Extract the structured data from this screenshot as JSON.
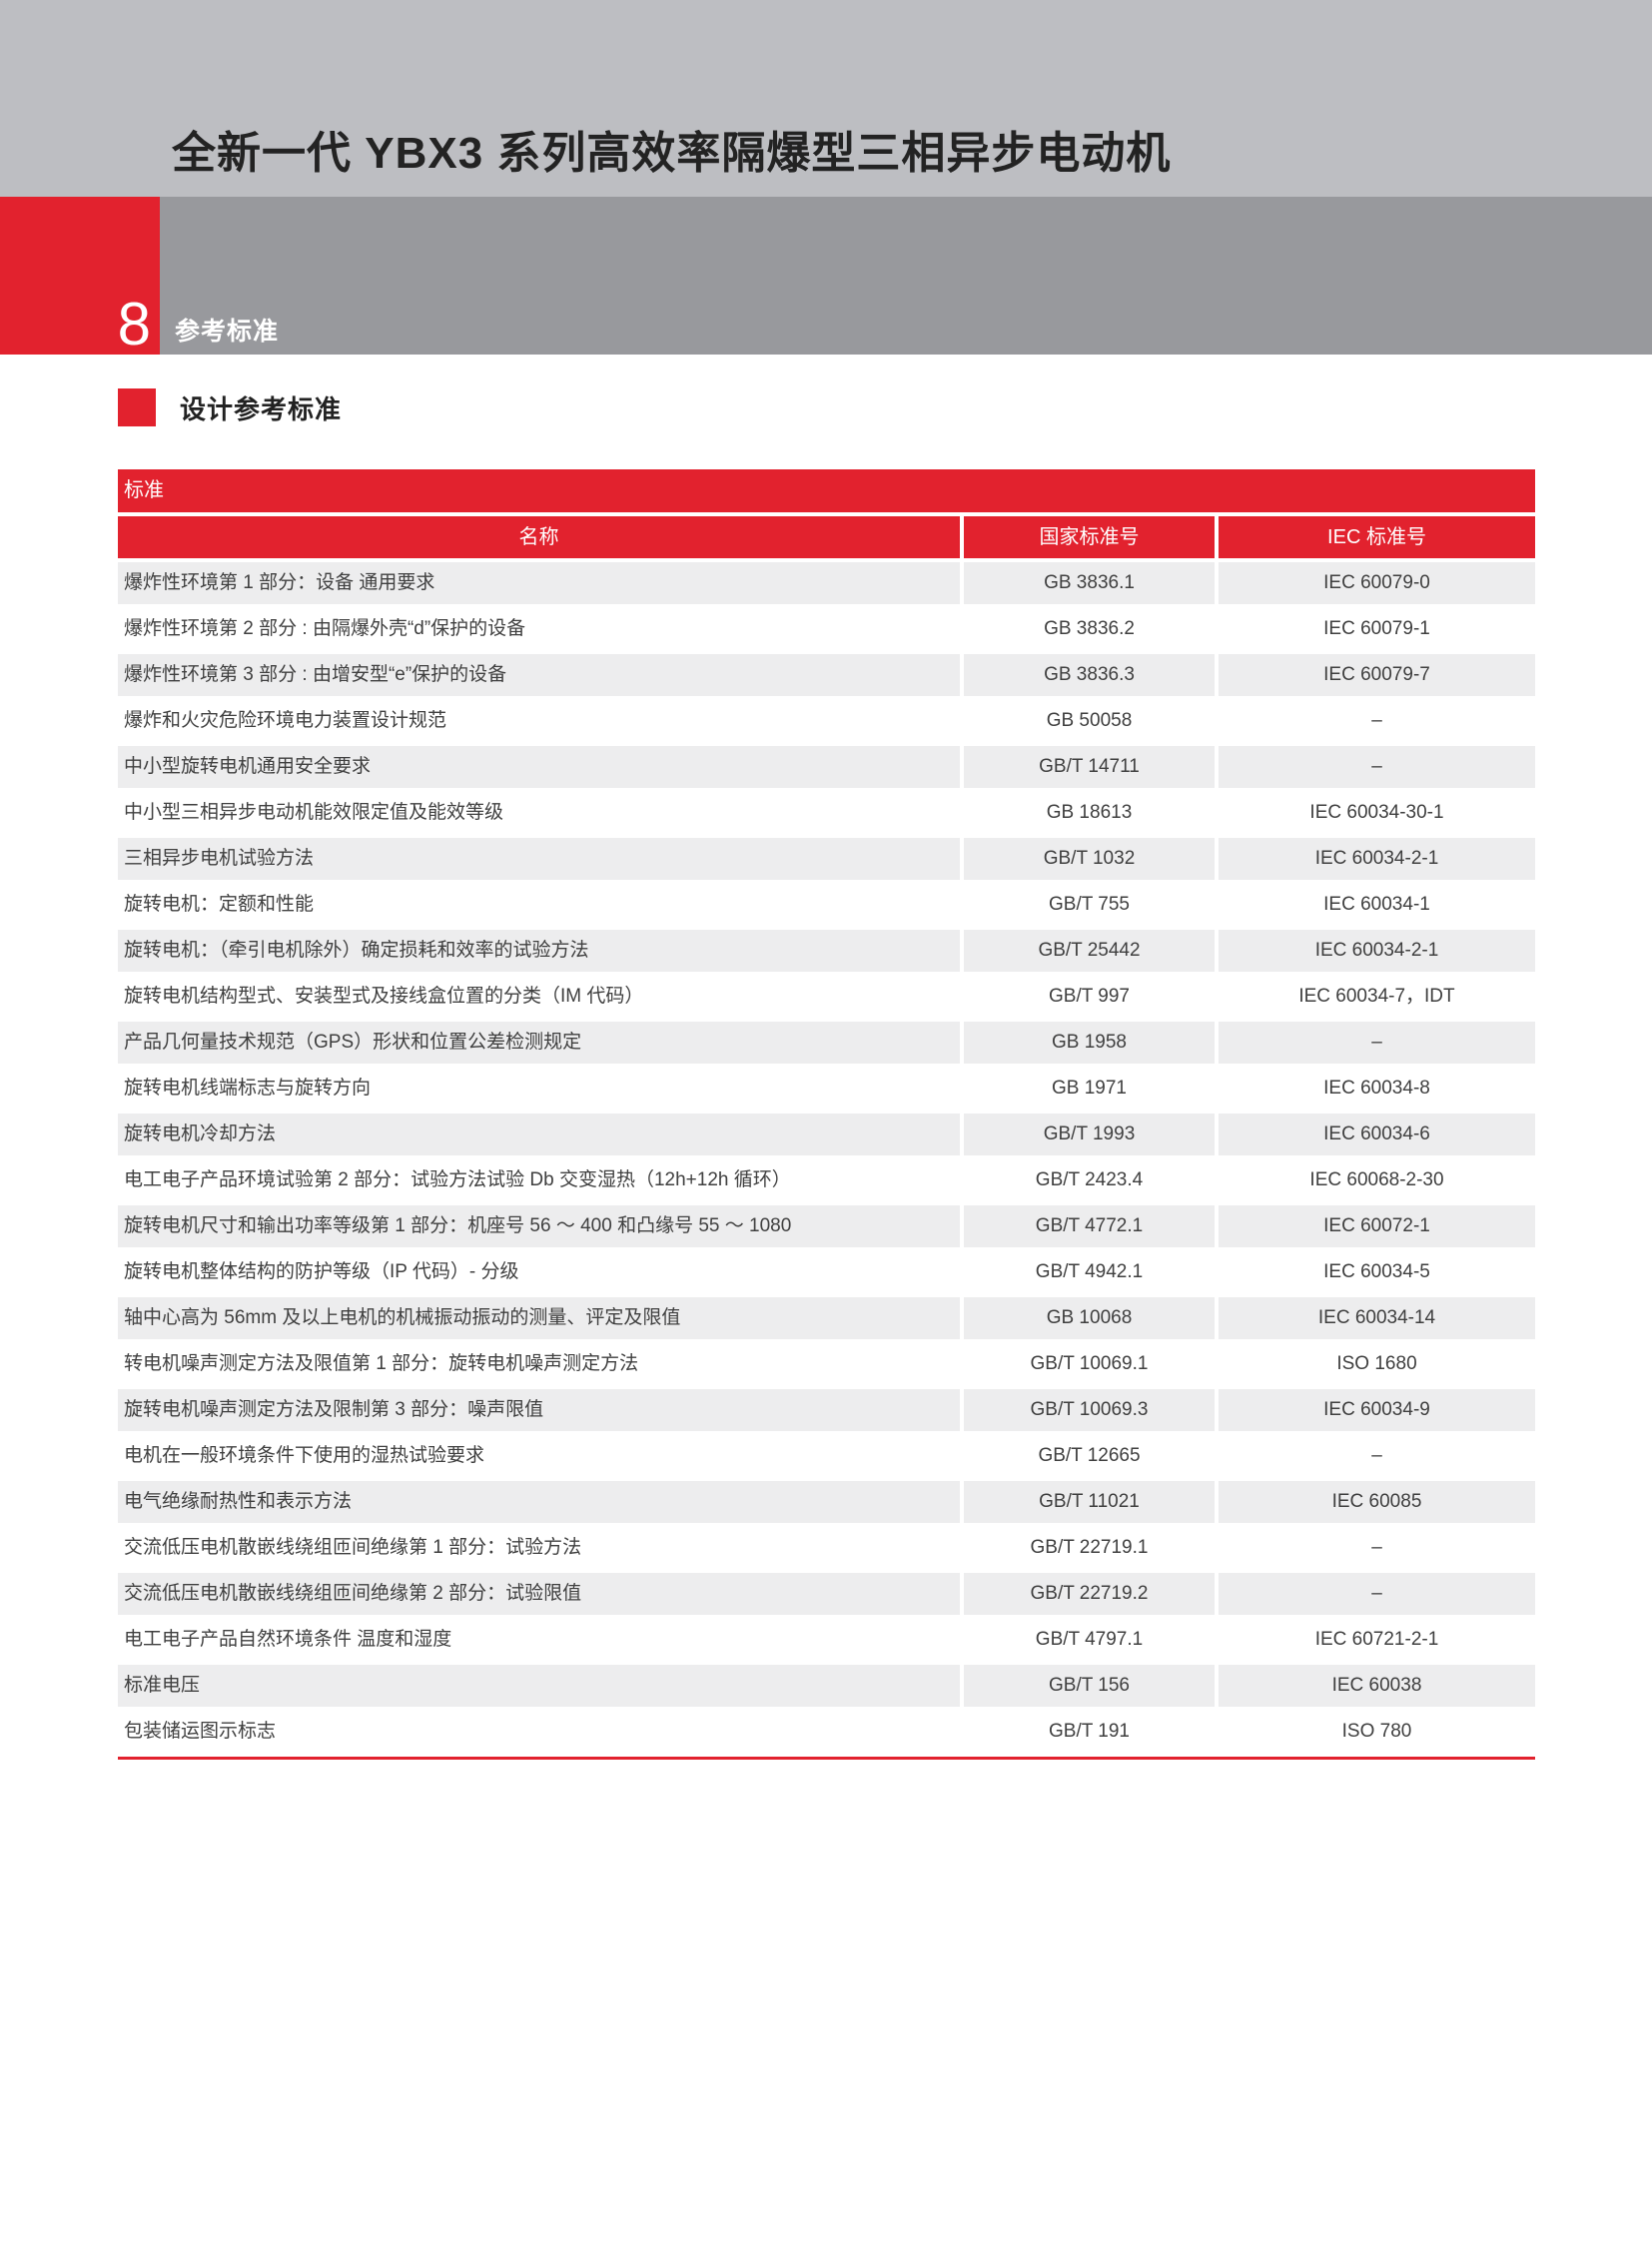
{
  "page": {
    "title": "全新一代 YBX3 系列高效率隔爆型三相异步电动机",
    "chapter_number": "8",
    "chapter_title": "参考标准",
    "section_title": "设计参考标准"
  },
  "table": {
    "band_title": "标准",
    "columns": [
      "名称",
      "国家标准号",
      "IEC 标准号"
    ],
    "rows": [
      {
        "name": "爆炸性环境第 1 部分：设备 通用要求",
        "gb": "GB 3836.1",
        "iec": "IEC 60079-0"
      },
      {
        "name": "爆炸性环境第 2 部分 : 由隔爆外壳“d”保护的设备",
        "gb": "GB 3836.2",
        "iec": "IEC 60079-1"
      },
      {
        "name": "爆炸性环境第 3 部分 : 由增安型“e”保护的设备",
        "gb": "GB 3836.3",
        "iec": "IEC 60079-7"
      },
      {
        "name": "爆炸和火灾危险环境电力装置设计规范",
        "gb": "GB 50058",
        "iec": "–"
      },
      {
        "name": "中小型旋转电机通用安全要求",
        "gb": "GB/T 14711",
        "iec": "–"
      },
      {
        "name": "中小型三相异步电动机能效限定值及能效等级",
        "gb": "GB 18613",
        "iec": "IEC 60034-30-1"
      },
      {
        "name": "三相异步电机试验方法",
        "gb": "GB/T 1032",
        "iec": "IEC 60034-2-1"
      },
      {
        "name": "旋转电机：定额和性能",
        "gb": "GB/T 755",
        "iec": "IEC 60034-1"
      },
      {
        "name": "旋转电机：（牵引电机除外）确定损耗和效率的试验方法",
        "gb": "GB/T 25442",
        "iec": "IEC 60034-2-1"
      },
      {
        "name": "旋转电机结构型式、安装型式及接线盒位置的分类（IM 代码）",
        "gb": "GB/T 997",
        "iec": "IEC 60034-7，IDT"
      },
      {
        "name": "产品几何量技术规范（GPS）形状和位置公差检测规定",
        "gb": "GB 1958",
        "iec": "–"
      },
      {
        "name": "旋转电机线端标志与旋转方向",
        "gb": "GB 1971",
        "iec": "IEC 60034-8"
      },
      {
        "name": "旋转电机冷却方法",
        "gb": "GB/T 1993",
        "iec": "IEC 60034-6"
      },
      {
        "name": "电工电子产品环境试验第 2 部分：试验方法试验 Db 交变湿热（12h+12h 循环）",
        "gb": "GB/T 2423.4",
        "iec": "IEC 60068-2-30"
      },
      {
        "name": "旋转电机尺寸和输出功率等级第 1 部分：机座号 56 ～ 400 和凸缘号 55 ～ 1080",
        "gb": "GB/T 4772.1",
        "iec": "IEC 60072-1"
      },
      {
        "name": "旋转电机整体结构的防护等级（IP 代码）- 分级",
        "gb": "GB/T 4942.1",
        "iec": "IEC 60034-5"
      },
      {
        "name": "轴中心高为 56mm 及以上电机的机械振动振动的测量、评定及限值",
        "gb": "GB 10068",
        "iec": "IEC 60034-14"
      },
      {
        "name": "转电机噪声测定方法及限值第 1 部分：旋转电机噪声测定方法",
        "gb": "GB/T 10069.1",
        "iec": "ISO 1680"
      },
      {
        "name": "旋转电机噪声测定方法及限制第 3 部分：噪声限值",
        "gb": "GB/T 10069.3",
        "iec": "IEC 60034-9"
      },
      {
        "name": "电机在一般环境条件下使用的湿热试验要求",
        "gb": "GB/T 12665",
        "iec": "–"
      },
      {
        "name": "电气绝缘耐热性和表示方法",
        "gb": "GB/T 11021",
        "iec": "IEC 60085"
      },
      {
        "name": "交流低压电机散嵌线绕组匝间绝缘第 1 部分：试验方法",
        "gb": "GB/T 22719.1",
        "iec": "–"
      },
      {
        "name": "交流低压电机散嵌线绕组匝间绝缘第 2 部分：试验限值",
        "gb": "GB/T 22719.2",
        "iec": "–"
      },
      {
        "name": "电工电子产品自然环境条件 温度和湿度",
        "gb": "GB/T 4797.1",
        "iec": "IEC 60721-2-1"
      },
      {
        "name": "标准电压",
        "gb": "GB/T 156",
        "iec": "IEC 60038"
      },
      {
        "name": "包装储运图示标志",
        "gb": "GB/T 191",
        "iec": "ISO 780"
      }
    ]
  },
  "colors": {
    "accent": "#e2222e",
    "band_light": "#bdbec2",
    "band_dark": "#98999d",
    "row_shade": "#ededee",
    "text_dark": "#3f3f3f",
    "title_color": "#232323"
  }
}
